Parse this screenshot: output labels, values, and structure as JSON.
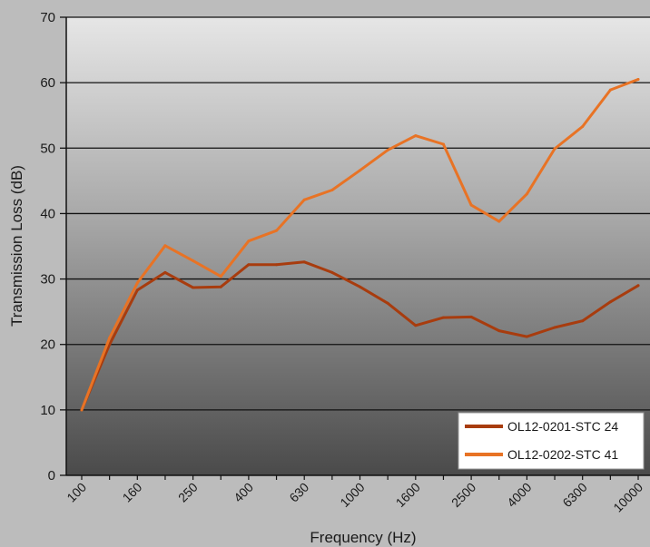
{
  "chart_data": {
    "type": "line",
    "title": "",
    "xlabel": "Frequency (Hz)",
    "ylabel": "Transmission Loss (dB)",
    "ylim": [
      0,
      70
    ],
    "yticks": [
      "0",
      "10",
      "20",
      "30",
      "40",
      "50",
      "60",
      "70"
    ],
    "x_all": [
      "100",
      "125",
      "160",
      "200",
      "250",
      "315",
      "400",
      "500",
      "630",
      "800",
      "1000",
      "1250",
      "1600",
      "2000",
      "2500",
      "3150",
      "4000",
      "5000",
      "6300",
      "8000",
      "10000"
    ],
    "xtick_labels": [
      "100",
      "160",
      "250",
      "400",
      "630",
      "1000",
      "1600",
      "2500",
      "4000",
      "6300",
      "10000"
    ],
    "grid": true,
    "legend_position": "bottom-right",
    "series": [
      {
        "name": "OL12-0201-STC 24",
        "color": "#a83c0e",
        "values": [
          10,
          20,
          28.3,
          31,
          28.7,
          28.8,
          32.2,
          32.2,
          32.6,
          31,
          28.8,
          26.3,
          22.9,
          24.1,
          24.2,
          22.1,
          21.2,
          22.6,
          23.6,
          26.5,
          29
        ]
      },
      {
        "name": "OL12-0202-STC 41",
        "color": "#e87325",
        "values": [
          10,
          21,
          29.4,
          35.1,
          32.8,
          30.4,
          35.8,
          37.4,
          42.1,
          43.6,
          46.6,
          49.7,
          51.9,
          50.6,
          41.3,
          38.8,
          43,
          49.9,
          53.3,
          58.9,
          60.5
        ]
      }
    ]
  }
}
